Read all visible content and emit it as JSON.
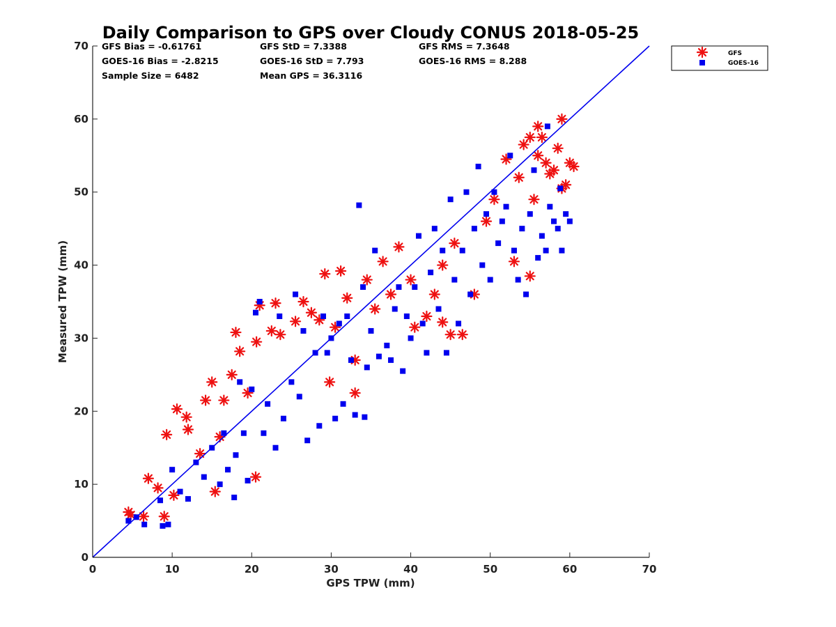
{
  "chart_data": {
    "type": "scatter",
    "title": "Daily Comparison to GPS over Cloudy CONUS 2018-05-25",
    "xlabel": "GPS TPW (mm)",
    "ylabel": "Measured TPW (mm)",
    "xlim": [
      0,
      70
    ],
    "ylim": [
      0,
      70
    ],
    "xticks": [
      "0",
      "10",
      "20",
      "30",
      "40",
      "50",
      "60",
      "70"
    ],
    "yticks": [
      "0",
      "10",
      "20",
      "30",
      "40",
      "50",
      "60",
      "70"
    ],
    "grid": false,
    "legend_position": "top-right outside",
    "stats": [
      [
        "GFS Bias = -0.61761",
        "GFS StD = 7.3388",
        "GFS RMS = 7.3648"
      ],
      [
        "GOES-16 Bias = -2.8215",
        "GOES-16 StD = 7.793",
        "GOES-16 RMS = 8.288"
      ],
      [
        "Sample Size = 6482",
        "Mean GPS = 36.3116"
      ]
    ],
    "reference_line": {
      "label": "1:1",
      "color": "#0000ee",
      "from": [
        0,
        0
      ],
      "to": [
        70,
        70
      ]
    },
    "series": [
      {
        "name": "GFS",
        "marker": "asterisk",
        "color": "#ee1111",
        "points": [
          [
            4.5,
            6.2
          ],
          [
            4.8,
            5.8
          ],
          [
            6.4,
            5.6
          ],
          [
            7,
            10.8
          ],
          [
            8.2,
            9.5
          ],
          [
            9,
            5.6
          ],
          [
            9.3,
            16.8
          ],
          [
            10.6,
            20.3
          ],
          [
            11.8,
            19.2
          ],
          [
            10.2,
            8.5
          ],
          [
            12,
            17.5
          ],
          [
            13.5,
            14.2
          ],
          [
            14.2,
            21.5
          ],
          [
            15,
            24
          ],
          [
            15.4,
            9
          ],
          [
            16,
            16.5
          ],
          [
            16.5,
            21.5
          ],
          [
            17.5,
            25
          ],
          [
            18,
            30.8
          ],
          [
            18.5,
            28.2
          ],
          [
            19.5,
            22.5
          ],
          [
            20.6,
            29.5
          ],
          [
            21,
            34.5
          ],
          [
            20.5,
            11
          ],
          [
            22.5,
            31
          ],
          [
            23,
            34.8
          ],
          [
            23.6,
            30.5
          ],
          [
            25.5,
            32.3
          ],
          [
            26.5,
            35
          ],
          [
            27.5,
            33.5
          ],
          [
            28.5,
            32.5
          ],
          [
            29.2,
            38.8
          ],
          [
            29.8,
            24
          ],
          [
            30.5,
            31.5
          ],
          [
            31.2,
            39.2
          ],
          [
            32,
            35.5
          ],
          [
            33,
            27
          ],
          [
            33,
            22.5
          ],
          [
            34.5,
            38
          ],
          [
            35.5,
            34
          ],
          [
            36.5,
            40.5
          ],
          [
            37.5,
            36
          ],
          [
            38.5,
            42.5
          ],
          [
            40,
            38
          ],
          [
            40.5,
            31.5
          ],
          [
            42,
            33
          ],
          [
            43,
            36
          ],
          [
            44,
            32.2
          ],
          [
            45,
            30.5
          ],
          [
            46.5,
            30.5
          ],
          [
            44,
            40
          ],
          [
            45.5,
            43
          ],
          [
            48,
            36
          ],
          [
            49.5,
            46
          ],
          [
            50.5,
            49
          ],
          [
            52,
            54.5
          ],
          [
            53,
            40.5
          ],
          [
            53.6,
            52
          ],
          [
            54.2,
            56.5
          ],
          [
            55,
            38.5
          ],
          [
            55.5,
            49
          ],
          [
            56,
            59
          ],
          [
            56.5,
            57.5
          ],
          [
            57,
            54
          ],
          [
            58,
            53
          ],
          [
            58.5,
            56
          ],
          [
            59,
            60
          ],
          [
            59.5,
            51
          ],
          [
            60,
            54
          ],
          [
            60.5,
            53.5
          ],
          [
            59,
            50.5
          ],
          [
            57.5,
            52.5
          ],
          [
            56,
            55
          ],
          [
            55,
            57.5
          ]
        ]
      },
      {
        "name": "GOES-16",
        "marker": "square",
        "color": "#0000ee",
        "points": [
          [
            4.5,
            5
          ],
          [
            5.5,
            5.5
          ],
          [
            6.5,
            4.5
          ],
          [
            8.5,
            7.8
          ],
          [
            8.8,
            4.3
          ],
          [
            9.5,
            4.5
          ],
          [
            10,
            12
          ],
          [
            11,
            9
          ],
          [
            12,
            8
          ],
          [
            13,
            13
          ],
          [
            14,
            11
          ],
          [
            15,
            15
          ],
          [
            16,
            10
          ],
          [
            16.5,
            17
          ],
          [
            17,
            12
          ],
          [
            17.8,
            8.2
          ],
          [
            18,
            14
          ],
          [
            19,
            17
          ],
          [
            19.5,
            10.5
          ],
          [
            20,
            23
          ],
          [
            20.5,
            33.5
          ],
          [
            21,
            35
          ],
          [
            21.5,
            17
          ],
          [
            22,
            21
          ],
          [
            23,
            15
          ],
          [
            23.5,
            33
          ],
          [
            24,
            19
          ],
          [
            25,
            24
          ],
          [
            25.5,
            36
          ],
          [
            26,
            22
          ],
          [
            26.5,
            31
          ],
          [
            27,
            16
          ],
          [
            28,
            28
          ],
          [
            28.5,
            18
          ],
          [
            29,
            33
          ],
          [
            29.5,
            28
          ],
          [
            30,
            30
          ],
          [
            30.5,
            19
          ],
          [
            31,
            32
          ],
          [
            31.5,
            21
          ],
          [
            32,
            33
          ],
          [
            32.5,
            27
          ],
          [
            33,
            19.5
          ],
          [
            34,
            37
          ],
          [
            34.5,
            26
          ],
          [
            35,
            31
          ],
          [
            35.5,
            42
          ],
          [
            36,
            27.5
          ],
          [
            37,
            29
          ],
          [
            37.5,
            27
          ],
          [
            38,
            34
          ],
          [
            38.5,
            37
          ],
          [
            39,
            25.5
          ],
          [
            39.5,
            33
          ],
          [
            40,
            30
          ],
          [
            40.5,
            37
          ],
          [
            41,
            44
          ],
          [
            41.5,
            32
          ],
          [
            42,
            28
          ],
          [
            42.5,
            39
          ],
          [
            43,
            45
          ],
          [
            43.5,
            34
          ],
          [
            44,
            42
          ],
          [
            44.5,
            28
          ],
          [
            45,
            49
          ],
          [
            45.5,
            38
          ],
          [
            46,
            32
          ],
          [
            46.5,
            42
          ],
          [
            47,
            50
          ],
          [
            47.5,
            36
          ],
          [
            48,
            45
          ],
          [
            48.5,
            53.5
          ],
          [
            49,
            40
          ],
          [
            49.5,
            47
          ],
          [
            50,
            38
          ],
          [
            50.5,
            50
          ],
          [
            51,
            43
          ],
          [
            51.5,
            46
          ],
          [
            52,
            48
          ],
          [
            52.5,
            55
          ],
          [
            53,
            42
          ],
          [
            53.5,
            38
          ],
          [
            54,
            45
          ],
          [
            54.5,
            36
          ],
          [
            55,
            47
          ],
          [
            55.5,
            53
          ],
          [
            56,
            41
          ],
          [
            56.5,
            44
          ],
          [
            57,
            42
          ],
          [
            57.5,
            48
          ],
          [
            58,
            46
          ],
          [
            58.5,
            45
          ],
          [
            59,
            42
          ],
          [
            59.5,
            47
          ],
          [
            60,
            46
          ],
          [
            58.8,
            50.5
          ],
          [
            57.2,
            59
          ],
          [
            33.5,
            48.2
          ],
          [
            34.2,
            19.2
          ],
          [
            18.5,
            24
          ]
        ]
      }
    ]
  }
}
